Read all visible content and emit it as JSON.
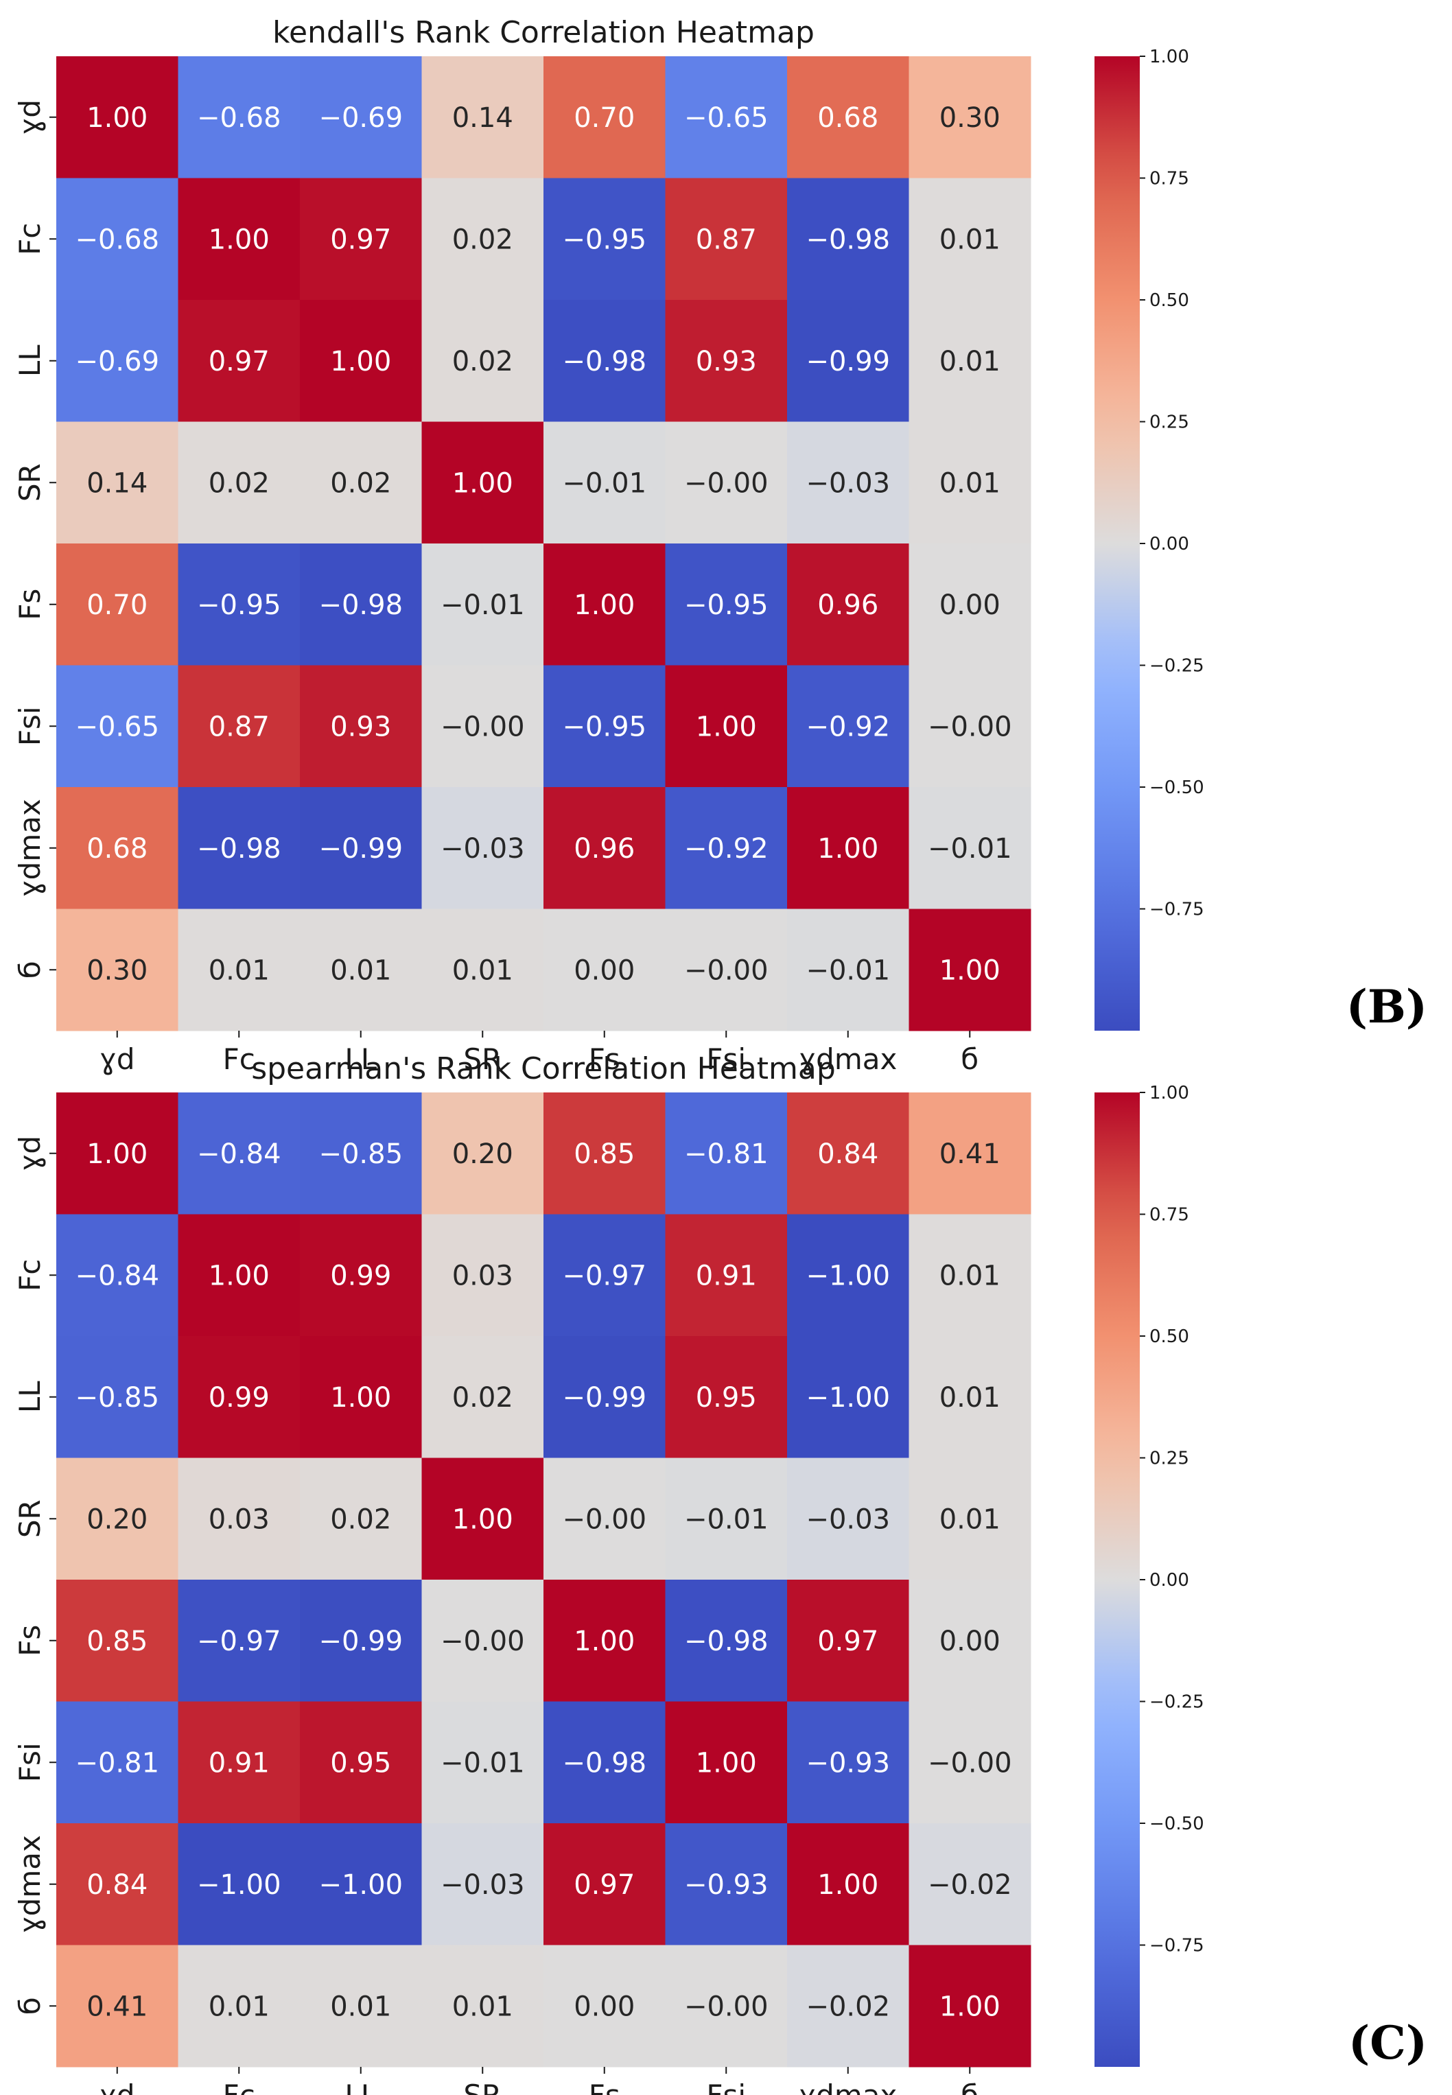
{
  "chart_data": [
    {
      "type": "heatmap",
      "title": "kendall's Rank Correlation Heatmap",
      "panel_label": "(B)",
      "row_labels": [
        "ɣd",
        "Fc",
        "LL",
        "SR",
        "Fs",
        "Fsi",
        "ɣdmax",
        "б"
      ],
      "col_labels": [
        "ɣd",
        "Fc",
        "LL",
        "SR",
        "Fs",
        "Fsi",
        "ɣdmax",
        "б"
      ],
      "values": [
        [
          1.0,
          -0.68,
          -0.69,
          0.14,
          0.7,
          -0.65,
          0.68,
          0.3
        ],
        [
          -0.68,
          1.0,
          0.97,
          0.02,
          -0.95,
          0.87,
          -0.98,
          0.01
        ],
        [
          -0.69,
          0.97,
          1.0,
          0.02,
          -0.98,
          0.93,
          -0.99,
          0.01
        ],
        [
          0.14,
          0.02,
          0.02,
          1.0,
          -0.01,
          -0.0,
          -0.03,
          0.01
        ],
        [
          0.7,
          -0.95,
          -0.98,
          -0.01,
          1.0,
          -0.95,
          0.96,
          0.0
        ],
        [
          -0.65,
          0.87,
          0.93,
          -0.0,
          -0.95,
          1.0,
          -0.92,
          -0.0
        ],
        [
          0.68,
          -0.98,
          -0.99,
          -0.03,
          0.96,
          -0.92,
          1.0,
          -0.01
        ],
        [
          0.3,
          0.01,
          0.01,
          0.01,
          0.0,
          -0.0,
          -0.01,
          1.0
        ]
      ],
      "colormap": "coolwarm",
      "vmin": -1.0,
      "vmax": 1.0,
      "colorbar_ticks": [
        1.0,
        0.75,
        0.5,
        0.25,
        0.0,
        -0.25,
        -0.5,
        -0.75
      ],
      "colorbar_tick_labels": [
        "1.00",
        "0.75",
        "0.50",
        "0.25",
        "0.00",
        "−0.25",
        "−0.50",
        "−0.75"
      ]
    },
    {
      "type": "heatmap",
      "title": "spearman's Rank Correlation Heatmap",
      "panel_label": "(C)",
      "row_labels": [
        "ɣd",
        "Fc",
        "LL",
        "SR",
        "Fs",
        "Fsi",
        "ɣdmax",
        "б"
      ],
      "col_labels": [
        "ɣd",
        "Fc",
        "LL",
        "SR",
        "Fs",
        "Fsi",
        "ɣdmax",
        "б"
      ],
      "values": [
        [
          1.0,
          -0.84,
          -0.85,
          0.2,
          0.85,
          -0.81,
          0.84,
          0.41
        ],
        [
          -0.84,
          1.0,
          0.99,
          0.03,
          -0.97,
          0.91,
          -1.0,
          0.01
        ],
        [
          -0.85,
          0.99,
          1.0,
          0.02,
          -0.99,
          0.95,
          -1.0,
          0.01
        ],
        [
          0.2,
          0.03,
          0.02,
          1.0,
          -0.0,
          -0.01,
          -0.03,
          0.01
        ],
        [
          0.85,
          -0.97,
          -0.99,
          -0.0,
          1.0,
          -0.98,
          0.97,
          0.0
        ],
        [
          -0.81,
          0.91,
          0.95,
          -0.01,
          -0.98,
          1.0,
          -0.93,
          -0.0
        ],
        [
          0.84,
          -1.0,
          -1.0,
          -0.03,
          0.97,
          -0.93,
          1.0,
          -0.02
        ],
        [
          0.41,
          0.01,
          0.01,
          0.01,
          0.0,
          -0.0,
          -0.02,
          1.0
        ]
      ],
      "colormap": "coolwarm",
      "vmin": -1.0,
      "vmax": 1.0,
      "colorbar_ticks": [
        1.0,
        0.75,
        0.5,
        0.25,
        0.0,
        -0.25,
        -0.5,
        -0.75
      ],
      "colorbar_tick_labels": [
        "1.00",
        "0.75",
        "0.50",
        "0.25",
        "0.00",
        "−0.25",
        "−0.50",
        "−0.75"
      ]
    }
  ]
}
